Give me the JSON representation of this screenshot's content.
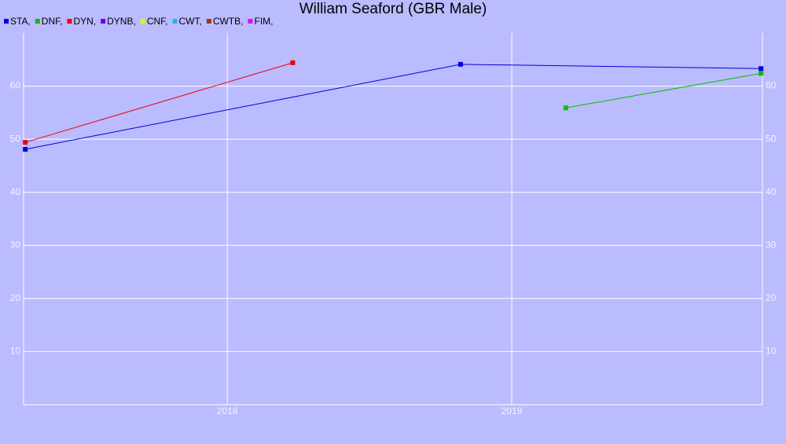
{
  "chart_data": {
    "type": "line",
    "title": "William Seaford (GBR Male)",
    "xlim": [
      2017.284,
      2019.881
    ],
    "xticks": [
      2018,
      2019
    ],
    "ylim": [
      0,
      70
    ],
    "yticks": [
      10,
      20,
      30,
      40,
      50,
      60
    ],
    "grid": true,
    "right_axis_labels": true,
    "series": [
      {
        "name": "STA,",
        "color": "#0000dd",
        "x": [
          2017.29,
          2018.82,
          2019.876
        ],
        "values": [
          48.1,
          64.1,
          63.3
        ]
      },
      {
        "name": "DNF,",
        "color": "#00c000",
        "x": [
          2019.19,
          2019.876
        ],
        "values": [
          55.9,
          62.4
        ]
      },
      {
        "name": "DYN,",
        "color": "#ee0000",
        "x": [
          2017.29,
          2018.23
        ],
        "values": [
          49.4,
          64.4
        ]
      },
      {
        "name": "DYNB,",
        "color": "#6a00ee",
        "x": [],
        "values": []
      },
      {
        "name": "CNF,",
        "color": "#eeee00",
        "x": [],
        "values": []
      },
      {
        "name": "CWT,",
        "color": "#22bbdd",
        "x": [],
        "values": []
      },
      {
        "name": "CWTB,",
        "color": "#aa3300",
        "x": [],
        "values": []
      },
      {
        "name": "FIM,",
        "color": "#ee00ee",
        "x": [],
        "values": []
      }
    ]
  }
}
